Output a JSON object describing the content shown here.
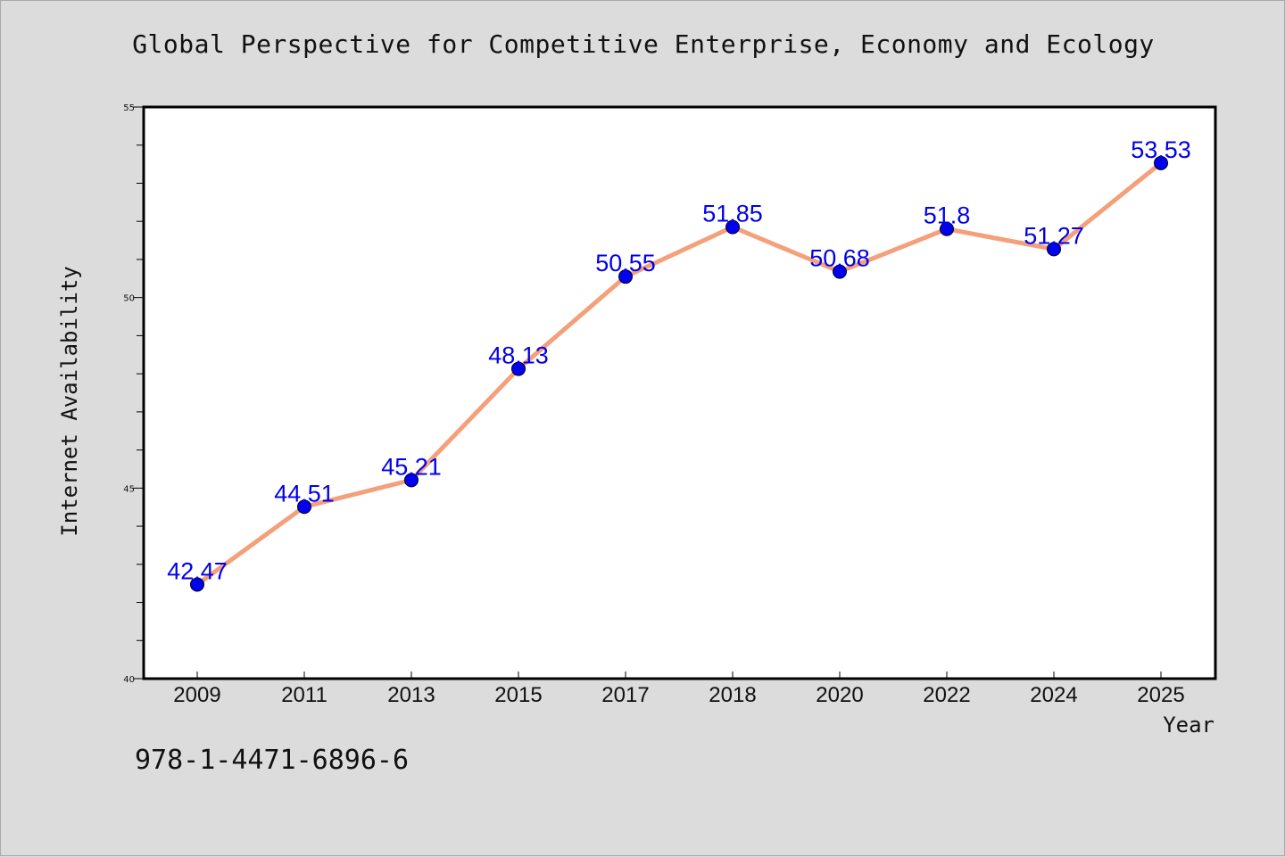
{
  "chart_data": {
    "type": "line",
    "title": "Global Perspective for Competitive Enterprise, Economy and Ecology",
    "xlabel": "Year",
    "ylabel": "Internet Availability",
    "categories": [
      "2009",
      "2011",
      "2013",
      "2015",
      "2017",
      "2018",
      "2020",
      "2022",
      "2024",
      "2025"
    ],
    "values": [
      42.47,
      44.51,
      45.21,
      48.13,
      50.55,
      51.85,
      50.68,
      51.8,
      51.27,
      53.53
    ],
    "value_labels": [
      "42.47",
      "44.51",
      "45.21",
      "48.13",
      "50.55",
      "51.85",
      "50.68",
      "51.8",
      "51.27",
      "53.53"
    ],
    "ylim": [
      40,
      55
    ],
    "yticks": [
      40,
      45,
      50,
      55
    ],
    "grid": false,
    "line_color": "#f4a07a",
    "marker_color": "#0000ee",
    "label_color": "#0000ee"
  },
  "footer": {
    "isbn": "978-1-4471-6896-6"
  }
}
